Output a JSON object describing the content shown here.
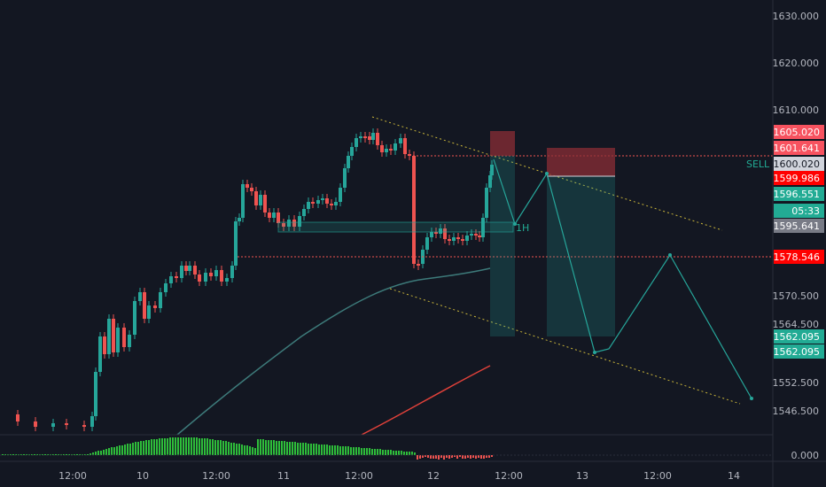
{
  "chart_data": {
    "type": "candlestick",
    "price_axis": {
      "ticks": [
        "1630.000",
        "1620.000",
        "1610.000",
        "1570.500",
        "1564.500",
        "1552.500",
        "1546.500"
      ],
      "osc_tick": "0.000"
    },
    "time_axis": {
      "ticks": [
        "12:00",
        "10",
        "12:00",
        "11",
        "12:00",
        "12",
        "12:00",
        "13",
        "12:00",
        "14"
      ]
    },
    "price_labels": [
      {
        "text": "1605.020",
        "color": "#f7525f"
      },
      {
        "text": "1601.641",
        "color": "#f7525f"
      },
      {
        "text": "1600.020",
        "color": "#d1d4dc"
      },
      {
        "text": "1599.986",
        "color": "#ff0000"
      },
      {
        "text": "1596.551",
        "color": "#22ab94"
      },
      {
        "text": "05:33",
        "color": "#22ab94"
      },
      {
        "text": "1595.641",
        "color": "#787b86"
      },
      {
        "text": "1578.546",
        "color": "#ff0000"
      },
      {
        "text": "1562.095",
        "color": "#22ab94"
      },
      {
        "text": "1562.095",
        "color": "#22ab94"
      }
    ],
    "annotations": {
      "sell_label": "SELL",
      "h_marker": "1H"
    },
    "colors": {
      "background": "#131722",
      "up": "#26a69a",
      "down": "#ef5350",
      "ma_fast": "#3d7a7a",
      "ma_slow": "#e0413a",
      "channel": "#c8b43a",
      "projection": "#26a69a",
      "osc_up": "#2ebd3a",
      "osc_down": "#ef5350"
    }
  }
}
